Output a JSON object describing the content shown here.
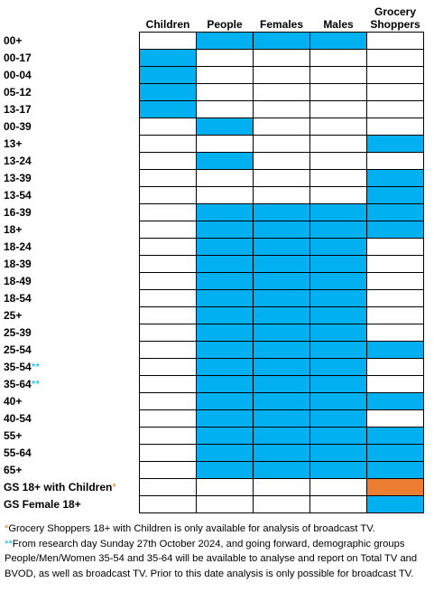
{
  "columns": [
    "Children",
    "People",
    "Females",
    "Males",
    "Grocery Shoppers"
  ],
  "colors": {
    "available": "#00b0f0",
    "broadcast_only": "#ed7d31",
    "footnote_star_blue": "#00b0f0",
    "footnote_star_orange": "#ed7d31"
  },
  "rows": [
    {
      "label": "00+",
      "mark": "",
      "cells": [
        0,
        1,
        1,
        1,
        0
      ]
    },
    {
      "label": "00-17",
      "mark": "",
      "cells": [
        1,
        0,
        0,
        0,
        0
      ]
    },
    {
      "label": "00-04",
      "mark": "",
      "cells": [
        1,
        0,
        0,
        0,
        0
      ]
    },
    {
      "label": "05-12",
      "mark": "",
      "cells": [
        1,
        0,
        0,
        0,
        0
      ]
    },
    {
      "label": "13-17",
      "mark": "",
      "cells": [
        1,
        0,
        0,
        0,
        0
      ]
    },
    {
      "label": "00-39",
      "mark": "",
      "cells": [
        0,
        1,
        0,
        0,
        0
      ]
    },
    {
      "label": "13+",
      "mark": "",
      "cells": [
        0,
        0,
        0,
        0,
        1
      ]
    },
    {
      "label": "13-24",
      "mark": "",
      "cells": [
        0,
        1,
        0,
        0,
        0
      ]
    },
    {
      "label": "13-39",
      "mark": "",
      "cells": [
        0,
        0,
        0,
        0,
        1
      ]
    },
    {
      "label": "13-54",
      "mark": "",
      "cells": [
        0,
        0,
        0,
        0,
        1
      ]
    },
    {
      "label": "16-39",
      "mark": "",
      "cells": [
        0,
        1,
        1,
        1,
        1
      ]
    },
    {
      "label": "18+",
      "mark": "",
      "cells": [
        0,
        1,
        1,
        1,
        1
      ]
    },
    {
      "label": "18-24",
      "mark": "",
      "cells": [
        0,
        1,
        1,
        1,
        0
      ]
    },
    {
      "label": "18-39",
      "mark": "",
      "cells": [
        0,
        1,
        1,
        1,
        0
      ]
    },
    {
      "label": "18-49",
      "mark": "",
      "cells": [
        0,
        1,
        1,
        1,
        0
      ]
    },
    {
      "label": "18-54",
      "mark": "",
      "cells": [
        0,
        1,
        1,
        1,
        0
      ]
    },
    {
      "label": "25+",
      "mark": "",
      "cells": [
        0,
        1,
        1,
        1,
        0
      ]
    },
    {
      "label": "25-39",
      "mark": "",
      "cells": [
        0,
        1,
        1,
        1,
        0
      ]
    },
    {
      "label": "25-54",
      "mark": "",
      "cells": [
        0,
        1,
        1,
        1,
        1
      ]
    },
    {
      "label": "35-54",
      "mark": "**",
      "mark_color": "blue",
      "cells": [
        0,
        1,
        1,
        1,
        0
      ]
    },
    {
      "label": "35-64",
      "mark": "**",
      "mark_color": "blue",
      "cells": [
        0,
        1,
        1,
        1,
        0
      ]
    },
    {
      "label": "40+",
      "mark": "",
      "cells": [
        0,
        1,
        1,
        1,
        1
      ]
    },
    {
      "label": "40-54",
      "mark": "",
      "cells": [
        0,
        1,
        1,
        1,
        0
      ]
    },
    {
      "label": "55+",
      "mark": "",
      "cells": [
        0,
        1,
        1,
        1,
        1
      ]
    },
    {
      "label": "55-64",
      "mark": "",
      "cells": [
        0,
        1,
        1,
        1,
        1
      ]
    },
    {
      "label": "65+",
      "mark": "",
      "cells": [
        0,
        1,
        1,
        1,
        1
      ]
    },
    {
      "label": "GS 18+ with Children",
      "mark": "*",
      "mark_color": "orange",
      "cells": [
        0,
        0,
        0,
        0,
        2
      ]
    },
    {
      "label": "GS Female 18+",
      "mark": "",
      "cells": [
        0,
        0,
        0,
        0,
        1
      ]
    }
  ],
  "footnotes": [
    {
      "mark": "*",
      "text": "Grocery Shoppers 18+ with Children is only available for analysis of broadcast TV."
    },
    {
      "mark": "**",
      "text": "From research day Sunday 27th October 2024, and going forward, demographic groups People/Men/Women 35-54 and 35-64 will be available to analyse and report on Total TV and BVOD, as well as broadcast TV. Prior to this date analysis is only possible for broadcast TV."
    }
  ]
}
